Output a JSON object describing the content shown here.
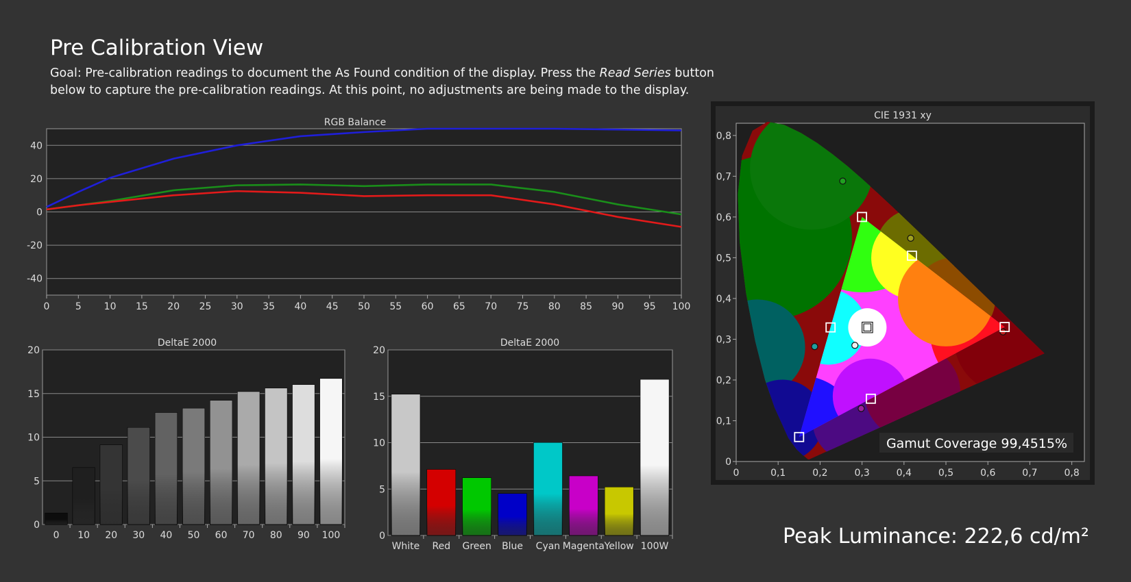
{
  "header": {
    "title": "Pre Calibration View",
    "goal_pre": "Goal: Pre-calibration readings to document the As Found condition of the display. Press the ",
    "goal_em": "Read Series",
    "goal_post": " button below to capture the pre-calibration readings. At this point, no adjustments are being made to the display."
  },
  "peak": {
    "label": "Peak Luminance: 222,6 cd/m²"
  },
  "colors": {
    "background": "#333333",
    "plot_bg": "#222222",
    "red": "#e31a1a",
    "green": "#1a8f1a",
    "blue": "#1f1fd9"
  },
  "chart_data": [
    {
      "type": "line",
      "title": "RGB Balance",
      "x": [
        0,
        5,
        10,
        20,
        30,
        40,
        50,
        60,
        70,
        80,
        90,
        100
      ],
      "xticks": [
        0,
        5,
        10,
        15,
        20,
        25,
        30,
        35,
        40,
        45,
        50,
        55,
        60,
        65,
        70,
        75,
        80,
        85,
        90,
        95,
        100
      ],
      "yticks": [
        40,
        20,
        0,
        -20,
        -40
      ],
      "xlim": [
        0,
        100
      ],
      "ylim": [
        -50,
        50
      ],
      "grid": true,
      "series": [
        {
          "color": "#1f1fd9",
          "values": [
            3,
            12,
            20.5,
            32,
            40,
            45.5,
            48,
            50,
            50,
            50,
            49.5,
            49
          ]
        },
        {
          "color": "#1a8f1a",
          "values": [
            1.5,
            4,
            6.5,
            13,
            16,
            16.5,
            15.5,
            16.5,
            16.5,
            12,
            4.5,
            -1.5
          ]
        },
        {
          "color": "#e31a1a",
          "values": [
            1.5,
            4,
            6,
            10,
            12.5,
            11.5,
            9.5,
            10,
            10,
            4.5,
            -3,
            -9
          ]
        }
      ]
    },
    {
      "type": "bar",
      "title": "DeltaE 2000",
      "categories": [
        "0",
        "10",
        "20",
        "30",
        "40",
        "50",
        "60",
        "70",
        "80",
        "90",
        "100"
      ],
      "values": [
        1.3,
        6.5,
        9.1,
        11.1,
        12.8,
        13.3,
        14.2,
        15.2,
        15.6,
        16.0,
        16.7
      ],
      "bar_colors": [
        "#0d0d0d",
        "#1f1f1f",
        "#343434",
        "#4b4b4b",
        "#626262",
        "#7a7a7a",
        "#929292",
        "#aaaaaa",
        "#c4c4c4",
        "#dddddd",
        "#f6f6f6"
      ],
      "yticks": [
        20,
        15,
        10,
        5,
        0
      ],
      "ylim": [
        0,
        20
      ],
      "grid": true
    },
    {
      "type": "bar",
      "title": "DeltaE 2000",
      "categories": [
        "White",
        "Red",
        "Green",
        "Blue",
        "Cyan",
        "Magenta",
        "Yellow",
        "100W"
      ],
      "values": [
        15.2,
        7.1,
        6.2,
        4.5,
        10.0,
        6.4,
        5.2,
        16.8
      ],
      "bar_colors": [
        "#c8c8c8",
        "#d40000",
        "#00c800",
        "#0000c8",
        "#00c8c8",
        "#c800c8",
        "#c8c800",
        "#f6f6f6"
      ],
      "yticks": [
        20,
        15,
        10,
        5,
        0
      ],
      "ylim": [
        0,
        20
      ],
      "grid": true
    },
    {
      "type": "scatter",
      "title": "CIE 1931 xy",
      "xticks": [
        "0",
        "0,1",
        "0,2",
        "0,3",
        "0,4",
        "0,5",
        "0,6",
        "0,7",
        "0,8"
      ],
      "yticks": [
        "0,8",
        "0,7",
        "0,6",
        "0,5",
        "0,4",
        "0,3",
        "0,2",
        "0,1",
        "0"
      ],
      "xlim": [
        0,
        0.83
      ],
      "ylim": [
        0,
        0.83
      ],
      "annotation": "Gamut Coverage 99,4515%",
      "targets": [
        {
          "x": 0.64,
          "y": 0.33
        },
        {
          "x": 0.3,
          "y": 0.6
        },
        {
          "x": 0.15,
          "y": 0.06
        },
        {
          "x": 0.225,
          "y": 0.329
        },
        {
          "x": 0.321,
          "y": 0.154
        },
        {
          "x": 0.419,
          "y": 0.505
        },
        {
          "x": 0.3127,
          "y": 0.329
        }
      ],
      "measured": [
        {
          "x": 0.636,
          "y": 0.318,
          "color": "#c02020"
        },
        {
          "x": 0.254,
          "y": 0.688,
          "color": "#20a020"
        },
        {
          "x": 0.298,
          "y": 0.13,
          "color": "#a020a0"
        },
        {
          "x": 0.187,
          "y": 0.282,
          "color": "#20a0a0"
        },
        {
          "x": 0.416,
          "y": 0.548,
          "color": "#a0a020"
        },
        {
          "x": 0.283,
          "y": 0.285,
          "color": "#f0f0f0"
        }
      ]
    }
  ]
}
